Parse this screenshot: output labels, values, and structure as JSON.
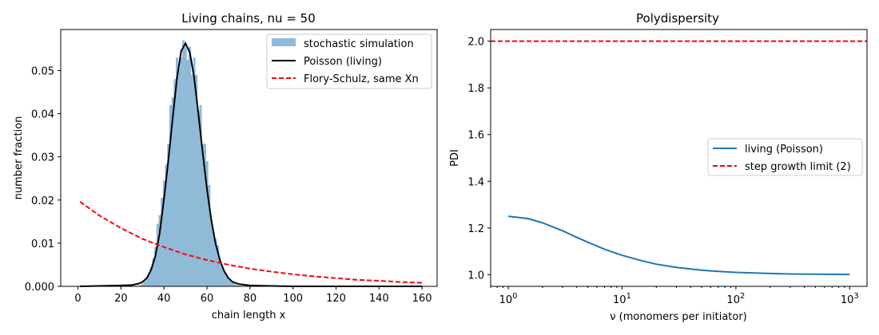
{
  "chart_data": [
    {
      "type": "bar",
      "title": "Living chains, nu = 50",
      "xlabel": "chain length x",
      "ylabel": "number fraction",
      "xlim": [
        -8,
        167
      ],
      "ylim": [
        0,
        0.0595
      ],
      "xticks": [
        0,
        20,
        40,
        60,
        80,
        100,
        120,
        140,
        160
      ],
      "yticks": [
        0.0,
        0.01,
        0.02,
        0.03,
        0.04,
        0.05
      ],
      "ytick_labels": [
        "0.000",
        "0.01",
        "0.02",
        "0.03",
        "0.04",
        "0.05"
      ],
      "grid": false,
      "legend_position": "top-right",
      "histogram": {
        "name": "stochastic simulation",
        "color": "#8fbbd9",
        "bin_width": 1,
        "x": [
          29,
          30,
          31,
          32,
          33,
          34,
          35,
          36,
          37,
          38,
          39,
          40,
          41,
          42,
          43,
          44,
          45,
          46,
          47,
          48,
          49,
          50,
          51,
          52,
          53,
          54,
          55,
          56,
          57,
          58,
          59,
          60,
          61,
          62,
          63,
          64,
          65,
          66,
          67,
          68,
          69,
          70,
          71,
          72,
          73,
          74,
          75,
          76,
          77,
          78
        ],
        "values": [
          0.0003,
          0.0006,
          0.0011,
          0.0018,
          0.0028,
          0.0044,
          0.0065,
          0.0091,
          0.0145,
          0.0165,
          0.0205,
          0.0245,
          0.0283,
          0.033,
          0.042,
          0.0438,
          0.048,
          0.053,
          0.0505,
          0.053,
          0.057,
          0.0555,
          0.0525,
          0.0555,
          0.049,
          0.053,
          0.049,
          0.0405,
          0.042,
          0.033,
          0.033,
          0.029,
          0.0235,
          0.0155,
          0.0125,
          0.011,
          0.0095,
          0.006,
          0.0045,
          0.0034,
          0.0025,
          0.0018,
          0.0012,
          0.0008,
          0.0005,
          0.0003,
          0.0002,
          0.0001,
          0.0001,
          0.0001
        ]
      },
      "series": [
        {
          "name": "Poisson (living)",
          "style": "solid",
          "color": "#000000",
          "x": [
            1,
            20,
            25,
            28,
            30,
            32,
            34,
            36,
            38,
            40,
            42,
            44,
            46,
            48,
            50,
            52,
            54,
            56,
            58,
            60,
            62,
            64,
            66,
            68,
            70,
            72,
            75,
            80,
            90,
            100,
            120,
            140,
            160
          ],
          "values": [
            0,
            0.0002,
            0.0003,
            0.0006,
            0.001,
            0.0019,
            0.0038,
            0.007,
            0.0123,
            0.0202,
            0.029,
            0.0387,
            0.048,
            0.0545,
            0.0563,
            0.0542,
            0.0485,
            0.04,
            0.031,
            0.0225,
            0.0154,
            0.0099,
            0.0061,
            0.0035,
            0.0019,
            0.001,
            0.0005,
            0.0002,
            0.0001,
            0.0,
            0.0,
            0.0,
            0.0
          ]
        },
        {
          "name": "Flory-Schulz, same Xn",
          "style": "dashed",
          "color": "#ff0000",
          "x": [
            1,
            10,
            20,
            30,
            40,
            50,
            60,
            70,
            80,
            90,
            100,
            110,
            120,
            130,
            140,
            150,
            160
          ],
          "values": [
            0.0196,
            0.0164,
            0.0135,
            0.011,
            0.0091,
            0.0074,
            0.0061,
            0.005,
            0.0041,
            0.0034,
            0.0028,
            0.0023,
            0.0019,
            0.0015,
            0.0013,
            0.001,
            0.0008
          ]
        }
      ]
    },
    {
      "type": "line",
      "title": "Polydispersity",
      "xlabel": "ν (monomers per initiator)",
      "ylabel": "PDI",
      "xscale": "log",
      "xlim": [
        0.7,
        1420
      ],
      "ylim": [
        0.95,
        2.05
      ],
      "xticks": [
        1,
        10,
        100,
        1000
      ],
      "xtick_base": "10",
      "xtick_exps": [
        "0",
        "1",
        "2",
        "3"
      ],
      "yticks": [
        1.0,
        1.2,
        1.4,
        1.6,
        1.8,
        2.0
      ],
      "ytick_labels": [
        "1.0",
        "1.2",
        "1.4",
        "1.6",
        "1.8",
        "2.0"
      ],
      "grid": false,
      "legend_position": "center-right",
      "series": [
        {
          "name": "living (Poisson)",
          "style": "solid",
          "color": "#1f77b4",
          "formula_note": "",
          "x": [
            1,
            1.5,
            2,
            3,
            4,
            5,
            7,
            10,
            15,
            20,
            30,
            50,
            70,
            100,
            200,
            300,
            500,
            1000
          ],
          "values": [
            1.25,
            1.24,
            1.222,
            1.188,
            1.16,
            1.139,
            1.109,
            1.083,
            1.059,
            1.045,
            1.031,
            1.019,
            1.014,
            1.01,
            1.005,
            1.003,
            1.002,
            1.001
          ]
        },
        {
          "name": "step growth limit (2)",
          "style": "dashed",
          "color": "#ff0000",
          "x": [
            0.7,
            1420
          ],
          "values": [
            2.0,
            2.0
          ]
        }
      ]
    }
  ]
}
